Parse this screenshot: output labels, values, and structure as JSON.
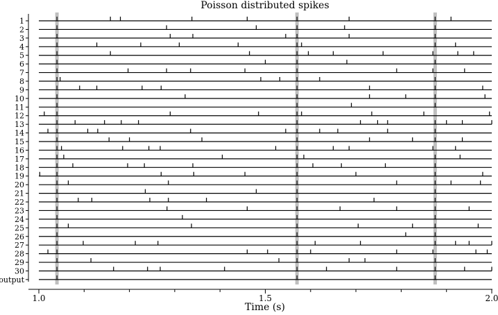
{
  "chart_data": {
    "type": "raster",
    "title": "Poisson distributed spikes",
    "xlabel": "Time (s)",
    "ylabel": "",
    "xlim": [
      1.0,
      2.0
    ],
    "x_ticks": [
      1.0,
      1.5,
      2.0
    ],
    "x_minor_ticks": [
      1.1,
      1.2,
      1.3,
      1.4,
      1.6,
      1.7,
      1.8,
      1.9
    ],
    "rows": [
      "1",
      "2",
      "3",
      "4",
      "5",
      "6",
      "7",
      "8",
      "9",
      "10",
      "11",
      "12",
      "13",
      "14",
      "15",
      "16",
      "17",
      "18",
      "19",
      "20",
      "21",
      "22",
      "23",
      "24",
      "25",
      "26",
      "27",
      "28",
      "29",
      "30",
      "output"
    ],
    "highlights": [
      1.04,
      1.57,
      1.875
    ],
    "spikes": [
      [
        1.04,
        1.158,
        1.18,
        1.338,
        1.46,
        1.57,
        1.685,
        1.875,
        1.91
      ],
      [
        1.04,
        1.282,
        1.48,
        1.57,
        1.675,
        1.875
      ],
      [
        1.04,
        1.29,
        1.34,
        1.545,
        1.57,
        1.685,
        1.875
      ],
      [
        1.04,
        1.128,
        1.225,
        1.31,
        1.44,
        1.57,
        1.58,
        1.875,
        1.92
      ],
      [
        1.04,
        1.158,
        1.465,
        1.57,
        1.595,
        1.65,
        1.76,
        1.87,
        1.925,
        1.96
      ],
      [
        1.04,
        1.5,
        1.57,
        1.68,
        1.875
      ],
      [
        1.04,
        1.197,
        1.282,
        1.335,
        1.455,
        1.57,
        1.79,
        1.87,
        1.94
      ],
      [
        1.04,
        1.047,
        1.49,
        1.532,
        1.57,
        1.62,
        1.875
      ],
      [
        1.04,
        1.09,
        1.128,
        1.228,
        1.27,
        1.57,
        1.73,
        1.875,
        1.98
      ],
      [
        1.04,
        1.323,
        1.57,
        1.73,
        1.81,
        1.875,
        1.985
      ],
      [
        1.04,
        1.57,
        1.69,
        1.875
      ],
      [
        1.04,
        1.012,
        1.29,
        1.485,
        1.57,
        1.58,
        1.735,
        1.85,
        1.995
      ],
      [
        1.04,
        1.08,
        1.145,
        1.182,
        1.22,
        1.57,
        1.71,
        1.748,
        1.77,
        1.875,
        1.9,
        1.935,
        2.0
      ],
      [
        1.04,
        1.02,
        1.108,
        1.13,
        1.335,
        1.545,
        1.57,
        1.62,
        1.66,
        1.77,
        1.875
      ],
      [
        1.04,
        1.155,
        1.2,
        1.36,
        1.57,
        1.73,
        1.825,
        1.875,
        1.935
      ],
      [
        1.04,
        1.05,
        1.185,
        1.243,
        1.268,
        1.523,
        1.57,
        1.65,
        1.685,
        1.87,
        1.92
      ],
      [
        1.04,
        1.055,
        1.405,
        1.57,
        1.585,
        1.875,
        1.93
      ],
      [
        1.04,
        1.075,
        1.196,
        1.233,
        1.34,
        1.57,
        1.605,
        1.668,
        1.765,
        1.875
      ],
      [
        1.04,
        1.002,
        1.27,
        1.342,
        1.455,
        1.57,
        1.7,
        1.875,
        1.98
      ],
      [
        1.04,
        1.065,
        1.286,
        1.57,
        1.79,
        1.875,
        1.91,
        1.975
      ],
      [
        1.04,
        1.235,
        1.48,
        1.57,
        1.875
      ],
      [
        1.04,
        1.087,
        1.117,
        1.245,
        1.286,
        1.37,
        1.57,
        1.74,
        1.875
      ],
      [
        1.04,
        1.283,
        1.46,
        1.57,
        1.665,
        1.79,
        1.875,
        1.95
      ],
      [
        1.04,
        1.317,
        1.57,
        1.875
      ],
      [
        1.04,
        1.065,
        1.337,
        1.57,
        1.705,
        1.825,
        1.875,
        1.97
      ],
      [
        1.04,
        1.57,
        1.81,
        1.875
      ],
      [
        1.04,
        1.098,
        1.213,
        1.263,
        1.57,
        1.61,
        1.71,
        1.875,
        1.92,
        1.95,
        2.0
      ],
      [
        1.04,
        1.02,
        1.46,
        1.505,
        1.57,
        1.6,
        1.79,
        1.87,
        1.965,
        1.99
      ],
      [
        1.04,
        1.115,
        1.53,
        1.57,
        1.685,
        1.72,
        1.875
      ],
      [
        1.04,
        1.165,
        1.24,
        1.268,
        1.41,
        1.57,
        1.635,
        1.79,
        1.875,
        1.94,
        2.0
      ],
      [
        1.04,
        1.57,
        1.875
      ]
    ]
  }
}
